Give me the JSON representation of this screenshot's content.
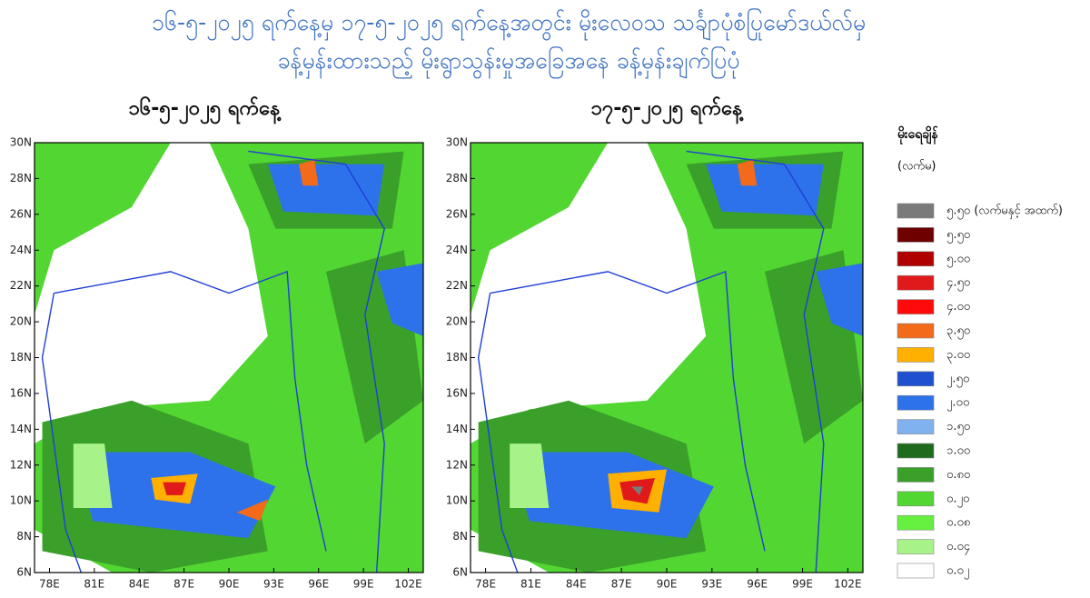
{
  "header": {
    "title_line1": "၁၆-၅-၂၀၂၅ ရက်နေ့မှ ၁၇-၅-၂၀၂၅ ရက်နေ့အတွင်း မိုးလေဝသ သင်္ချာပုံစံပြုမော်ဒယ်လ်မှ",
    "title_line2": "ခန့်မှန်းထားသည့် မိုးရွာသွန်းမှုအခြေအနေ ခန့်မှန်းချက်ပြပုံ"
  },
  "panels": [
    {
      "title": "၁၆-၅-၂၀၂၅ ရက်နေ့"
    },
    {
      "title": "၁၇-၅-၂၀၂၅ ရက်နေ့"
    }
  ],
  "axes": {
    "lat_labels": [
      "30N",
      "28N",
      "26N",
      "24N",
      "22N",
      "20N",
      "18N",
      "16N",
      "14N",
      "12N",
      "10N",
      "8N",
      "6N"
    ],
    "lon_labels": [
      "78E",
      "81E",
      "84E",
      "87E",
      "90E",
      "93E",
      "96E",
      "99E",
      "102E"
    ]
  },
  "legend": {
    "title": "မိုးရေချိန်",
    "unit": "(လက်မ)",
    "items": [
      {
        "label": "၅.၅၀ (လက်မနှင့် အထက်)",
        "color": "#7a7a7a"
      },
      {
        "label": "၅.၅၀",
        "color": "#6e0000"
      },
      {
        "label": "၅.၀၀",
        "color": "#b00000"
      },
      {
        "label": "၄.၅၀",
        "color": "#e01a1a"
      },
      {
        "label": "၄.၀၀",
        "color": "#ff0a0a"
      },
      {
        "label": "၃.၅၀",
        "color": "#f26a1a"
      },
      {
        "label": "၃.၀၀",
        "color": "#ffb000"
      },
      {
        "label": "၂.၅၀",
        "color": "#1f50cf"
      },
      {
        "label": "၂.၀၀",
        "color": "#2d72ea"
      },
      {
        "label": "၁.၅၀",
        "color": "#80b2f0"
      },
      {
        "label": "၁.၀၀",
        "color": "#1e6b1e"
      },
      {
        "label": "၀.၈၀",
        "color": "#3aa02a"
      },
      {
        "label": "၀.၂၀",
        "color": "#52d632"
      },
      {
        "label": "၀.၀၈",
        "color": "#66f040"
      },
      {
        "label": "၀.၀၄",
        "color": "#a8f28a"
      },
      {
        "label": "၀.၀၂",
        "color": "#ffffff"
      }
    ]
  }
}
